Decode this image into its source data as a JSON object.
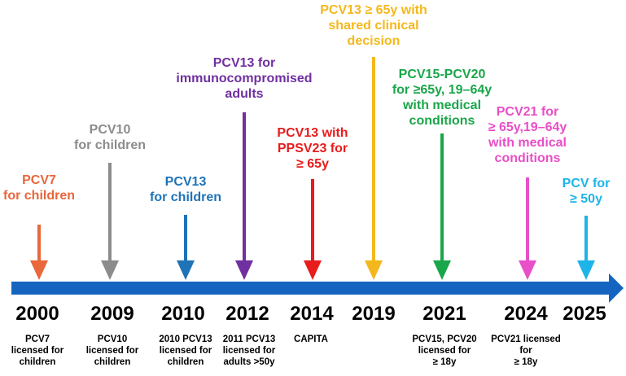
{
  "timeline": {
    "axis_color": "#1565c0",
    "events": [
      {
        "year": "2000",
        "label": [
          "PCV7",
          "for children"
        ],
        "color": "#e8673c",
        "note": [
          "PCV7",
          "licensed for",
          "children"
        ]
      },
      {
        "year": "2009",
        "label": [
          "PCV10",
          "for children"
        ],
        "color": "#8c8c8c",
        "note": [
          "PCV10",
          "licensed for",
          "children"
        ]
      },
      {
        "year": "2010",
        "label": [
          "PCV13",
          "for children"
        ],
        "color": "#1f73b7",
        "note": [
          "2010 PCV13",
          "licensed for",
          "children"
        ]
      },
      {
        "year": "2012",
        "label": [
          "PCV13 for",
          "immunocompromised",
          "adults"
        ],
        "color": "#7030a0",
        "note": [
          "2011 PCV13",
          "licensed for",
          "adults >50y"
        ]
      },
      {
        "year": "2014",
        "label": [
          "PCV13 with",
          "PPSV23 for",
          "≥ 65y"
        ],
        "color": "#e81c1c",
        "note": [
          "CAPITA"
        ]
      },
      {
        "year": "2019",
        "label": [
          "PCV13 ≥ 65y with",
          "shared clinical",
          "decision"
        ],
        "color": "#f4b81c",
        "note": []
      },
      {
        "year": "2021",
        "label": [
          "PCV15-PCV20",
          "for ≥65y, 19–64y",
          "with medical",
          "conditions"
        ],
        "color": "#1aa64a",
        "note": [
          "PCV15, PCV20",
          "licensed for",
          "≥ 18y"
        ]
      },
      {
        "year": "2024",
        "label": [
          "PCV21 for",
          "≥ 65y,19–64y",
          "with medical",
          "conditions"
        ],
        "color": "#e84fc8",
        "note": [
          "PCV21 licensed",
          "for",
          "≥ 18y"
        ]
      },
      {
        "year": "2025",
        "label": [
          "PCV for",
          "≥ 50y"
        ],
        "color": "#1fb4e8",
        "note": []
      }
    ]
  }
}
